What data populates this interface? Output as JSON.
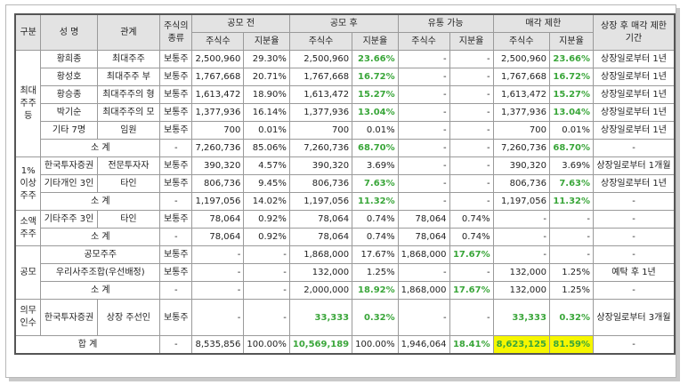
{
  "headers": {
    "category": "구분",
    "name": "성 명",
    "relation": "관계",
    "stock_type": "주식의 종류",
    "before_ipo": "공모 전",
    "after_ipo": "공모 후",
    "tradable": "유통 가능",
    "restricted": "매각 제한",
    "restriction_period": "상장 후 매각 제한 기간",
    "shares": "주식수",
    "ratio": "지분율"
  },
  "groups": {
    "major": "최대 주주 등",
    "one_pct": "1% 이상 주주",
    "minority": "소액 주주",
    "ipo": "공모",
    "mandatory": "의무 인수"
  },
  "rows": [
    {
      "name": "황희종",
      "relation": "최대주주",
      "type": "보통주",
      "pre_s": "2,500,960",
      "pre_r": "29.30%",
      "post_s": "2,500,960",
      "post_r": "23.66%",
      "tr_s": "-",
      "tr_r": "-",
      "rs_s": "2,500,960",
      "rs_r": "23.66%",
      "period": "상장일로부터 1년"
    },
    {
      "name": "황성호",
      "relation": "최대주주 부",
      "type": "보통주",
      "pre_s": "1,767,668",
      "pre_r": "20.71%",
      "post_s": "1,767,668",
      "post_r": "16.72%",
      "tr_s": "-",
      "tr_r": "-",
      "rs_s": "1,767,668",
      "rs_r": "16.72%",
      "period": "상장일로부터 1년"
    },
    {
      "name": "황승종",
      "relation": "최대주주의 형",
      "type": "보통주",
      "pre_s": "1,613,472",
      "pre_r": "18.90%",
      "post_s": "1,613,472",
      "post_r": "15.27%",
      "tr_s": "-",
      "tr_r": "-",
      "rs_s": "1,613,472",
      "rs_r": "15.27%",
      "period": "상장일로부터 1년"
    },
    {
      "name": "박기순",
      "relation": "최대주주의 모",
      "type": "보통주",
      "pre_s": "1,377,936",
      "pre_r": "16.14%",
      "post_s": "1,377,936",
      "post_r": "13.04%",
      "tr_s": "-",
      "tr_r": "-",
      "rs_s": "1,377,936",
      "rs_r": "13.04%",
      "period": "상장일로부터 1년"
    },
    {
      "name": "기타 7명",
      "relation": "임원",
      "type": "보통주",
      "pre_s": "700",
      "pre_r": "0.01%",
      "post_s": "700",
      "post_r": "0.01%",
      "tr_s": "-",
      "tr_r": "-",
      "rs_s": "700",
      "rs_r": "0.01%",
      "period": "상장일로부터 1년"
    },
    {
      "label": "소 계",
      "type": "-",
      "pre_s": "7,260,736",
      "pre_r": "85.06%",
      "post_s": "7,260,736",
      "post_r": "68.70%",
      "tr_s": "-",
      "tr_r": "-",
      "rs_s": "7,260,736",
      "rs_r": "68.70%",
      "period": "-"
    },
    {
      "name": "한국투자증권",
      "relation": "전문투자자",
      "type": "보통주",
      "pre_s": "390,320",
      "pre_r": "4.57%",
      "post_s": "390,320",
      "post_r": "3.69%",
      "tr_s": "-",
      "tr_r": "-",
      "rs_s": "390,320",
      "rs_r": "3.69%",
      "period": "상장일로부터 1개월"
    },
    {
      "name": "기타개인 3인",
      "relation": "타인",
      "type": "보통주",
      "pre_s": "806,736",
      "pre_r": "9.45%",
      "post_s": "806,736",
      "post_r": "7.63%",
      "tr_s": "-",
      "tr_r": "-",
      "rs_s": "806,736",
      "rs_r": "7.63%",
      "period": "상장일로부터 1년"
    },
    {
      "label": "소 계",
      "type": "-",
      "pre_s": "1,197,056",
      "pre_r": "14.02%",
      "post_s": "1,197,056",
      "post_r": "11.32%",
      "tr_s": "-",
      "tr_r": "-",
      "rs_s": "1,197,056",
      "rs_r": "11.32%",
      "period": "-"
    },
    {
      "name": "기타주주 3인",
      "relation": "타인",
      "type": "보통주",
      "pre_s": "78,064",
      "pre_r": "0.92%",
      "post_s": "78,064",
      "post_r": "0.74%",
      "tr_s": "78,064",
      "tr_r": "0.74%",
      "rs_s": "-",
      "rs_r": "-",
      "period": "-"
    },
    {
      "label": "소 계",
      "type": "-",
      "pre_s": "78,064",
      "pre_r": "0.92%",
      "post_s": "78,064",
      "post_r": "0.74%",
      "tr_s": "78,064",
      "tr_r": "0.74%",
      "rs_s": "-",
      "rs_r": "-",
      "period": "-"
    },
    {
      "label": "공모주주",
      "type": "보통주",
      "pre_s": "-",
      "pre_r": "-",
      "post_s": "1,868,000",
      "post_r": "17.67%",
      "tr_s": "1,868,000",
      "tr_r": "17.67%",
      "rs_s": "-",
      "rs_r": "-",
      "period": "-"
    },
    {
      "label": "우리사주조합(우선배정)",
      "type": "보통주",
      "pre_s": "-",
      "pre_r": "-",
      "post_s": "132,000",
      "post_r": "1.25%",
      "tr_s": "-",
      "tr_r": "-",
      "rs_s": "132,000",
      "rs_r": "1.25%",
      "period": "예탁 후 1년"
    },
    {
      "label": "소 계",
      "type": "-",
      "pre_s": "-",
      "pre_r": "-",
      "post_s": "2,000,000",
      "post_r": "18.92%",
      "tr_s": "1,868,000",
      "tr_r": "17.67%",
      "rs_s": "132,000",
      "rs_r": "1.25%",
      "period": "-"
    },
    {
      "name": "한국투자증권",
      "relation": "상장 주선인",
      "type": "보통주",
      "pre_s": "-",
      "pre_r": "-",
      "post_s": "33,333",
      "post_r": "0.32%",
      "tr_s": "-",
      "tr_r": "-",
      "rs_s": "33,333",
      "rs_r": "0.32%",
      "period": "상장일로부터 3개월"
    },
    {
      "label": "합 계",
      "type": "-",
      "pre_s": "8,535,856",
      "pre_r": "100.00%",
      "post_s": "10,569,189",
      "post_r": "100.00%",
      "tr_s": "1,946,064",
      "tr_r": "18.41%",
      "rs_s": "8,623,125",
      "rs_r": "81.59%",
      "period": "-"
    }
  ]
}
